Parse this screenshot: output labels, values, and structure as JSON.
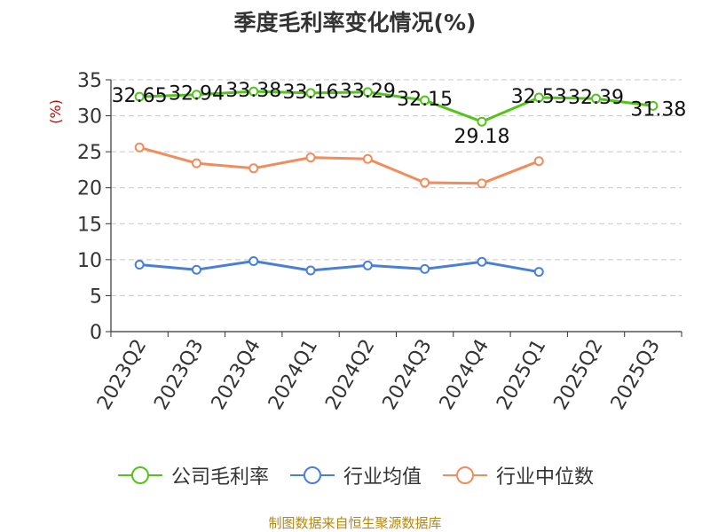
{
  "title": "季度毛利率变化情况(%)",
  "source": "制图数据来自恒生聚源数据库",
  "chart_data": {
    "type": "line",
    "title": "季度毛利率变化情况(%)",
    "xlabel": "",
    "ylabel": "(%)",
    "ylim": [
      0,
      35
    ],
    "yticks": [
      0,
      5,
      10,
      15,
      20,
      25,
      30,
      35
    ],
    "grid": true,
    "legend_position": "bottom",
    "categories": [
      "2023Q2",
      "2023Q3",
      "2023Q4",
      "2024Q1",
      "2024Q2",
      "2024Q3",
      "2024Q4",
      "2025Q1",
      "2025Q2",
      "2025Q3"
    ],
    "series": [
      {
        "name": "公司毛利率",
        "color": "#52c41a",
        "show_labels": true,
        "labels": [
          "32.65",
          "32.94",
          "33.38",
          "33.16",
          "33.29",
          "32.15",
          "29.18",
          "32.53",
          "32.39",
          "31.38"
        ],
        "values": [
          32.65,
          32.94,
          33.38,
          33.16,
          33.29,
          32.15,
          29.18,
          32.53,
          32.39,
          31.38
        ]
      },
      {
        "name": "行业均值",
        "color": "#4a7fd8",
        "show_labels": false,
        "values": [
          9.3,
          8.6,
          9.8,
          8.5,
          9.2,
          8.7,
          9.7,
          8.3,
          null,
          null
        ]
      },
      {
        "name": "行业中位数",
        "color": "#f28c5a",
        "show_labels": false,
        "values": [
          25.6,
          23.4,
          22.7,
          24.2,
          24.0,
          20.7,
          20.6,
          23.7,
          null,
          null
        ]
      }
    ]
  }
}
